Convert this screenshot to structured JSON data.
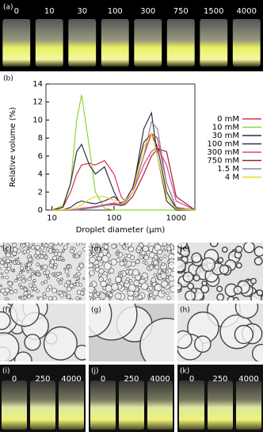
{
  "photo_top": {
    "label": "(a)",
    "vials": [
      "0",
      "10",
      "30",
      "100",
      "300",
      "750",
      "1500",
      "4000"
    ]
  },
  "chart_label": "(b)",
  "chart_data": {
    "type": "line",
    "x_label": "Droplet diameter (μm)",
    "y_label": "Relative volume (%)",
    "x": [
      10,
      15,
      20,
      25,
      30,
      40,
      50,
      70,
      100,
      130,
      150,
      200,
      300,
      400,
      500,
      700,
      1000,
      2000
    ],
    "xscale": "log",
    "xlim": [
      8,
      2000
    ],
    "xticks": [
      10,
      100,
      1000
    ],
    "ylim": [
      0,
      14
    ],
    "yticks": [
      0,
      2,
      4,
      6,
      8,
      10,
      12,
      14
    ],
    "legend": "right",
    "series": [
      {
        "name": "0 mM",
        "color": "#d8304a",
        "values": [
          0,
          0.3,
          2,
          4,
          5,
          5.2,
          5,
          5.5,
          4,
          1.5,
          1,
          2,
          6,
          8.5,
          8,
          3,
          0.3,
          0
        ]
      },
      {
        "name": "10 mM",
        "color": "#8fd630",
        "values": [
          0,
          0.5,
          3,
          10,
          12.8,
          7,
          2,
          0.2,
          0,
          0,
          0,
          0,
          0,
          0,
          0,
          0,
          0,
          0
        ]
      },
      {
        "name": "30 mM",
        "color": "#2a2f45",
        "values": [
          0,
          0.3,
          3,
          6.5,
          7.3,
          5,
          4,
          4.8,
          2,
          0.5,
          0.8,
          2,
          9,
          10.8,
          6,
          1,
          0,
          0
        ]
      },
      {
        "name": "100 mM",
        "color": "#3b2a5c",
        "values": [
          0,
          0,
          0.3,
          0.8,
          1,
          0.8,
          0.7,
          1,
          1.5,
          0.8,
          1,
          2.5,
          7.5,
          8.5,
          7,
          2,
          0.2,
          0
        ]
      },
      {
        "name": "300 mM",
        "color": "#e0408a",
        "values": [
          0,
          0,
          0,
          0.1,
          0.2,
          0.3,
          0.4,
          0.6,
          0.8,
          0.6,
          0.8,
          2,
          5,
          6.5,
          7,
          5,
          1,
          0
        ]
      },
      {
        "name": "750 mM",
        "color": "#a02030",
        "values": [
          0,
          0,
          0,
          0,
          0.1,
          0.2,
          0.3,
          0.5,
          0.6,
          0.5,
          0.6,
          1.5,
          4,
          6,
          6.8,
          6.5,
          1.5,
          0
        ]
      },
      {
        "name": "1.5 M",
        "color": "#8a8a9a",
        "values": [
          0,
          0,
          0,
          0,
          0.1,
          0.2,
          0.3,
          0.5,
          0.7,
          0.6,
          0.8,
          2,
          6,
          9.8,
          9,
          3,
          0.3,
          0
        ]
      },
      {
        "name": "4 M",
        "color": "#e8d81c",
        "values": [
          0,
          0,
          0.1,
          0.3,
          0.6,
          1.2,
          1.5,
          1.5,
          1.1,
          0.9,
          1,
          2,
          7,
          8.5,
          6,
          1.5,
          0.1,
          0
        ]
      }
    ]
  },
  "micrographs": [
    "(c)",
    "(d)",
    "(e)",
    "(f)",
    "(g)",
    "(h)"
  ],
  "photo_bottom": [
    {
      "label": "(i)",
      "vials": [
        "0",
        "250",
        "4000"
      ]
    },
    {
      "label": "(j)",
      "vials": [
        "0",
        "250",
        "4000"
      ]
    },
    {
      "label": "(k)",
      "vials": [
        "0",
        "250",
        "4000"
      ]
    }
  ]
}
